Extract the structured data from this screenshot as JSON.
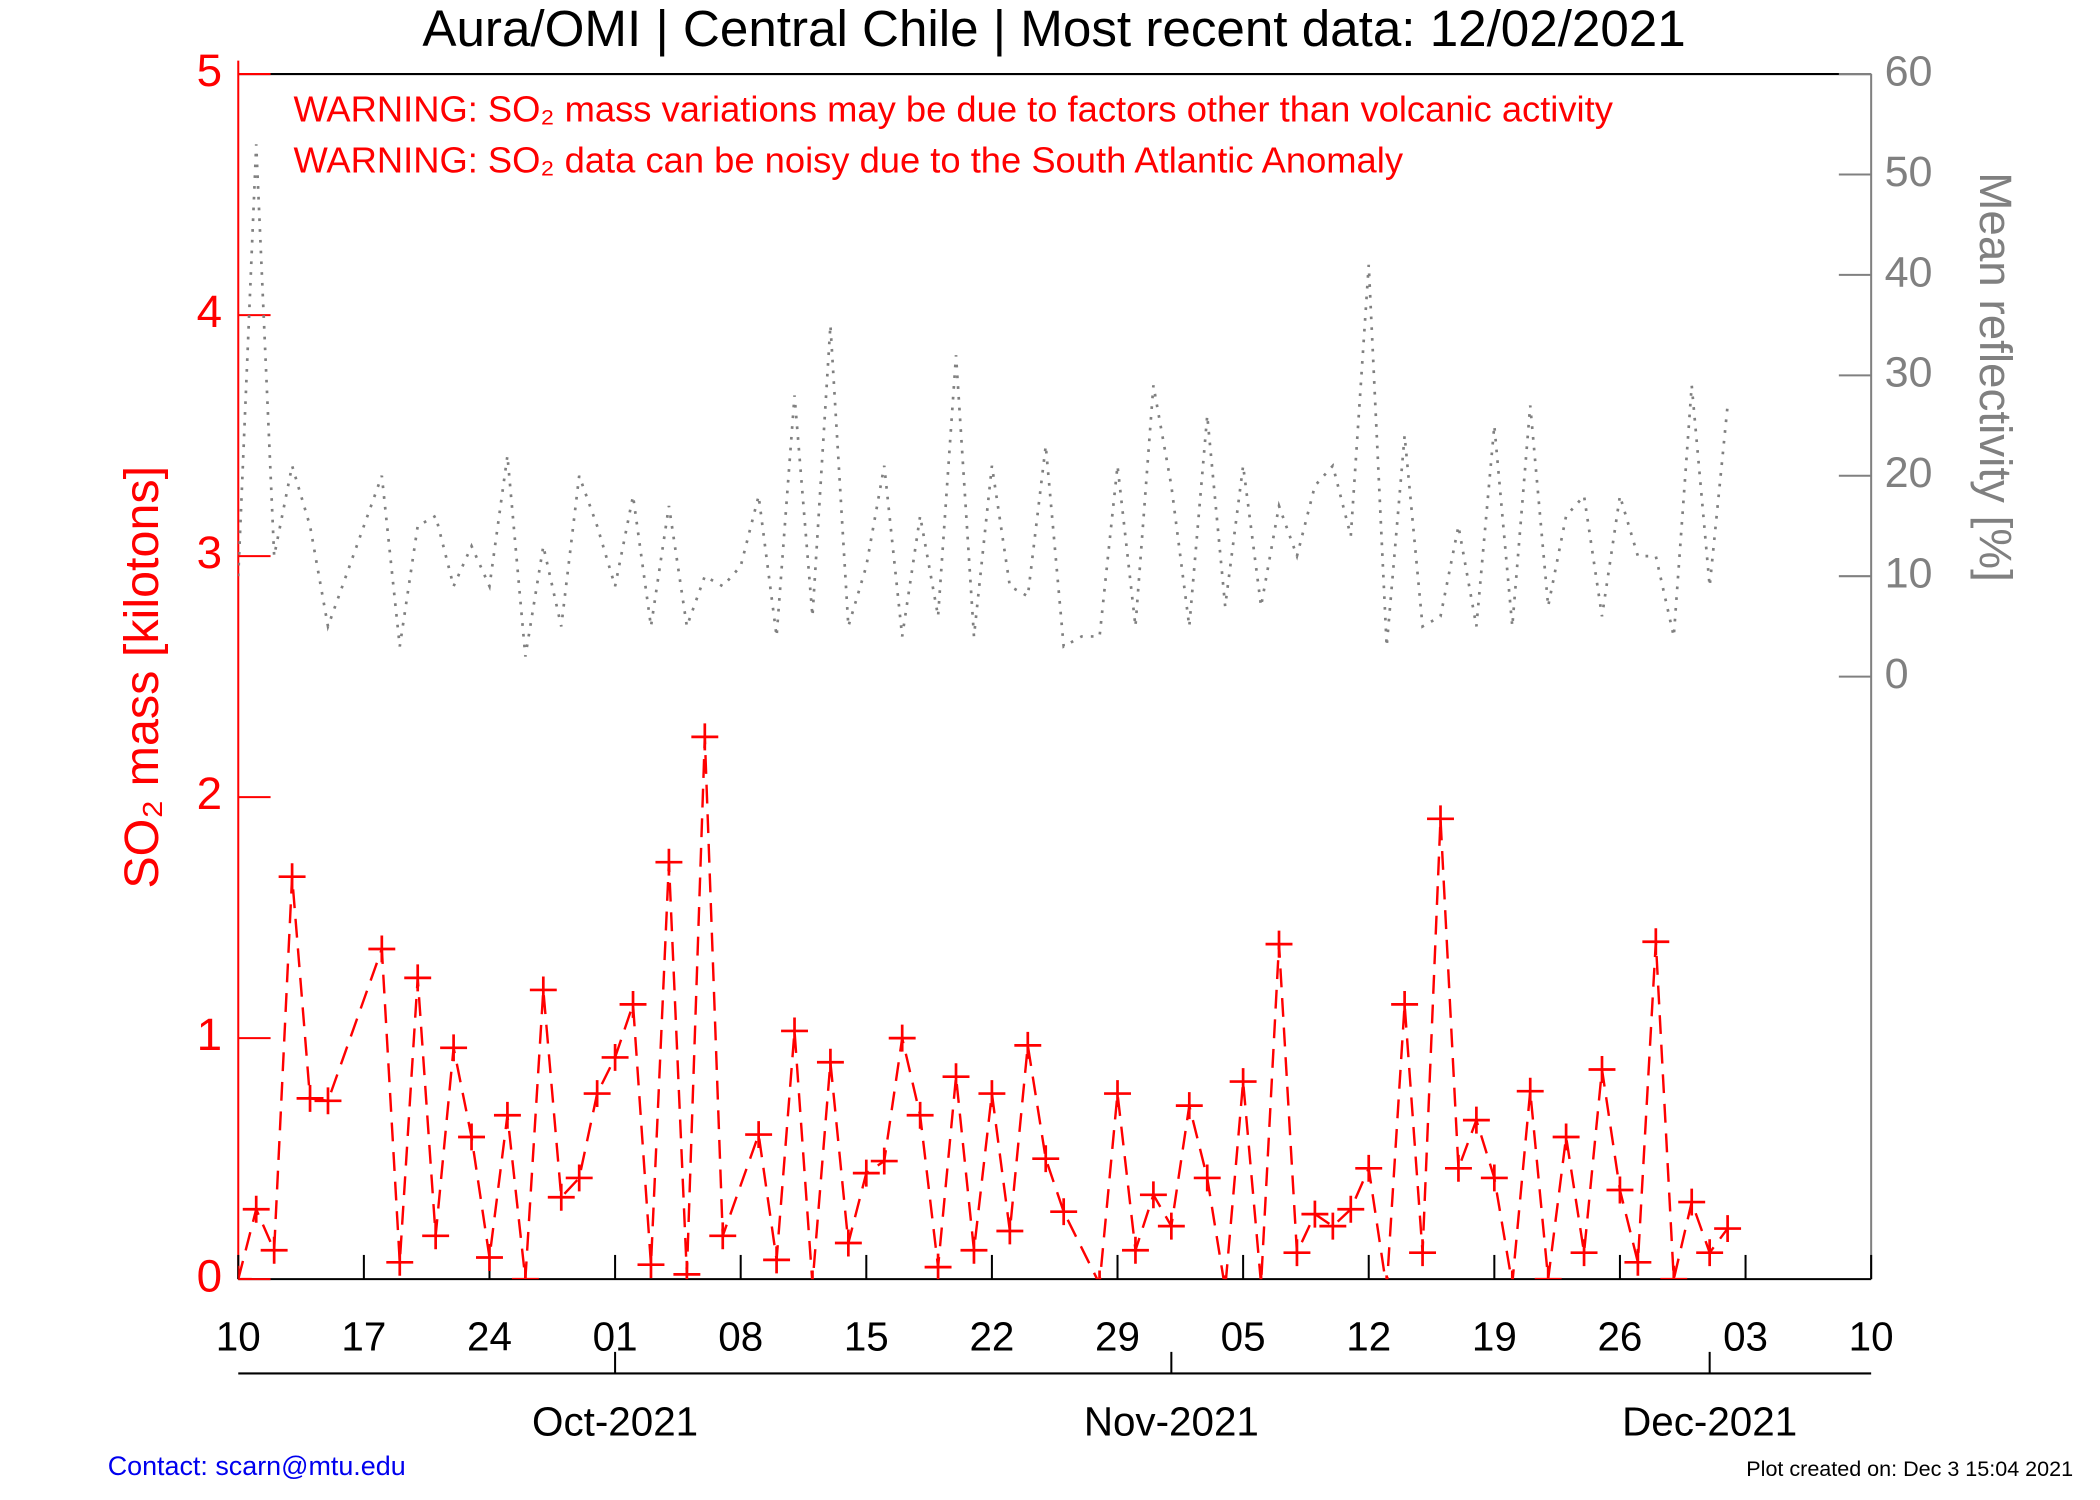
{
  "chart_data": {
    "type": "line",
    "title": "Aura/OMI | Central Chile | Most recent data: 12/02/2021",
    "annotations": [
      "WARNING: SO₂ mass variations may be due to factors other than volcanic activity",
      "WARNING: SO₂ data can be noisy due to the South Atlantic Anomaly"
    ],
    "ylabel": "SO₂ mass [kilotons]",
    "y2label": "Mean reflectivity [%]",
    "contact": "Contact: scarn@mtu.edu",
    "created": "Plot created on: Dec  3 15:04 2021",
    "xlim": [
      "2021-09-10",
      "2021-12-10"
    ],
    "xticks": [
      {
        "value": "2021-09-10",
        "label": "10"
      },
      {
        "value": "2021-09-17",
        "label": "17"
      },
      {
        "value": "2021-09-24",
        "label": "24"
      },
      {
        "value": "2021-10-01",
        "label": "01"
      },
      {
        "value": "2021-10-08",
        "label": "08"
      },
      {
        "value": "2021-10-15",
        "label": "15"
      },
      {
        "value": "2021-10-22",
        "label": "22"
      },
      {
        "value": "2021-10-29",
        "label": "29"
      },
      {
        "value": "2021-11-05",
        "label": "05"
      },
      {
        "value": "2021-11-12",
        "label": "12"
      },
      {
        "value": "2021-11-19",
        "label": "19"
      },
      {
        "value": "2021-11-26",
        "label": "26"
      },
      {
        "value": "2021-12-03",
        "label": "03"
      },
      {
        "value": "2021-12-10",
        "label": "10"
      }
    ],
    "month_ticks": [
      {
        "value": "2021-10-01",
        "label": "Oct-2021"
      },
      {
        "value": "2021-11-01",
        "label": "Nov-2021"
      },
      {
        "value": "2021-12-01",
        "label": "Dec-2021"
      }
    ],
    "ylim": [
      0,
      5
    ],
    "yticks": [
      0,
      1,
      2,
      3,
      4,
      5
    ],
    "y2lim": [
      -60,
      60
    ],
    "y2ticks": [
      0,
      10,
      20,
      30,
      40,
      50,
      60
    ],
    "series": [
      {
        "name": "SO₂ mass",
        "color": "#ff0000",
        "marker": "+",
        "x": [
          "2021-09-10",
          "2021-09-11",
          "2021-09-12",
          "2021-09-13",
          "2021-09-14",
          "2021-09-15",
          "2021-09-18",
          "2021-09-19",
          "2021-09-20",
          "2021-09-21",
          "2021-09-22",
          "2021-09-23",
          "2021-09-24",
          "2021-09-25",
          "2021-09-26",
          "2021-09-27",
          "2021-09-28",
          "2021-09-29",
          "2021-09-30",
          "2021-10-01",
          "2021-10-02",
          "2021-10-03",
          "2021-10-04",
          "2021-10-05",
          "2021-10-06",
          "2021-10-07",
          "2021-10-09",
          "2021-10-10",
          "2021-10-11",
          "2021-10-12",
          "2021-10-13",
          "2021-10-14",
          "2021-10-15",
          "2021-10-16",
          "2021-10-17",
          "2021-10-18",
          "2021-10-19",
          "2021-10-20",
          "2021-10-21",
          "2021-10-22",
          "2021-10-23",
          "2021-10-24",
          "2021-10-25",
          "2021-10-26",
          "2021-10-28",
          "2021-10-29",
          "2021-10-30",
          "2021-10-31",
          "2021-11-01",
          "2021-11-02",
          "2021-11-03",
          "2021-11-04",
          "2021-11-05",
          "2021-11-06",
          "2021-11-07",
          "2021-11-08",
          "2021-11-09",
          "2021-11-10",
          "2021-11-11",
          "2021-11-12",
          "2021-11-13",
          "2021-11-14",
          "2021-11-15",
          "2021-11-16",
          "2021-11-17",
          "2021-11-18",
          "2021-11-19",
          "2021-11-20",
          "2021-11-21",
          "2021-11-22",
          "2021-11-23",
          "2021-11-24",
          "2021-11-25",
          "2021-11-26",
          "2021-11-27",
          "2021-11-28",
          "2021-11-29",
          "2021-11-30",
          "2021-12-01",
          "2021-12-02"
        ],
        "values": [
          0,
          0.29,
          0.12,
          1.67,
          0.75,
          0.74,
          1.37,
          0.07,
          1.25,
          0.18,
          0.96,
          0.59,
          0.09,
          0.68,
          0,
          1.2,
          0.34,
          0.42,
          0.77,
          0.92,
          1.14,
          0.06,
          1.73,
          0.02,
          2.25,
          0.18,
          0.6,
          0.08,
          1.03,
          -0.02,
          0.9,
          0.15,
          0.44,
          0.49,
          1.0,
          0.68,
          0.05,
          0.84,
          0.12,
          0.77,
          0.2,
          0.97,
          0.5,
          0.28,
          -0.02,
          0.77,
          0.12,
          0.35,
          0.22,
          0.72,
          0.42,
          -0.04,
          0.82,
          -0.02,
          1.39,
          0.11,
          0.27,
          0.22,
          0.29,
          0.46,
          -0.04,
          1.14,
          0.11,
          1.91,
          0.46,
          0.66,
          0.42,
          -0.02,
          0.78,
          0,
          0.59,
          0.11,
          0.87,
          0.37,
          0.07,
          1.4,
          0,
          0.32,
          0.11,
          0.21
        ]
      },
      {
        "name": "Mean reflectivity",
        "color": "#808080",
        "axis": "y2",
        "x": [
          "2021-09-10",
          "2021-09-11",
          "2021-09-12",
          "2021-09-13",
          "2021-09-14",
          "2021-09-15",
          "2021-09-16",
          "2021-09-17",
          "2021-09-18",
          "2021-09-19",
          "2021-09-20",
          "2021-09-21",
          "2021-09-22",
          "2021-09-23",
          "2021-09-24",
          "2021-09-25",
          "2021-09-26",
          "2021-09-27",
          "2021-09-28",
          "2021-09-29",
          "2021-09-30",
          "2021-10-01",
          "2021-10-02",
          "2021-10-03",
          "2021-10-04",
          "2021-10-05",
          "2021-10-06",
          "2021-10-07",
          "2021-10-08",
          "2021-10-09",
          "2021-10-10",
          "2021-10-11",
          "2021-10-12",
          "2021-10-13",
          "2021-10-14",
          "2021-10-15",
          "2021-10-16",
          "2021-10-17",
          "2021-10-18",
          "2021-10-19",
          "2021-10-20",
          "2021-10-21",
          "2021-10-22",
          "2021-10-23",
          "2021-10-24",
          "2021-10-25",
          "2021-10-26",
          "2021-10-27",
          "2021-10-28",
          "2021-10-29",
          "2021-10-30",
          "2021-10-31",
          "2021-11-01",
          "2021-11-02",
          "2021-11-03",
          "2021-11-04",
          "2021-11-05",
          "2021-11-06",
          "2021-11-07",
          "2021-11-08",
          "2021-11-09",
          "2021-11-10",
          "2021-11-11",
          "2021-11-12",
          "2021-11-13",
          "2021-11-14",
          "2021-11-15",
          "2021-11-16",
          "2021-11-17",
          "2021-11-18",
          "2021-11-19",
          "2021-11-20",
          "2021-11-21",
          "2021-11-22",
          "2021-11-23",
          "2021-11-24",
          "2021-11-25",
          "2021-11-26",
          "2021-11-27",
          "2021-11-28",
          "2021-11-29",
          "2021-11-30",
          "2021-12-01",
          "2021-12-02"
        ],
        "values": [
          10,
          53,
          12,
          21,
          15,
          5,
          10,
          15,
          20,
          3,
          15,
          16,
          9,
          13,
          9,
          22,
          2,
          13,
          5,
          20,
          15,
          9,
          18,
          5,
          17,
          5,
          10,
          9,
          11,
          18,
          4,
          28,
          6,
          35,
          5,
          11,
          21,
          4,
          16,
          6,
          32,
          4,
          21,
          9,
          8,
          23,
          3,
          4,
          4,
          21,
          5,
          29,
          19,
          5,
          26,
          7,
          21,
          7,
          17,
          12,
          19,
          21,
          14,
          41,
          3,
          24,
          5,
          6,
          15,
          5,
          25,
          5,
          27,
          7,
          16,
          18,
          6,
          18,
          12,
          12,
          4,
          29,
          9,
          27
        ]
      }
    ]
  }
}
